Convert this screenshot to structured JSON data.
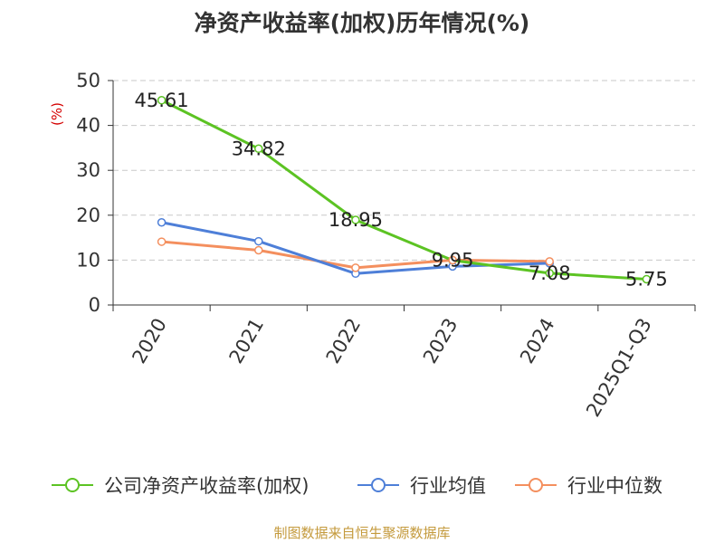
{
  "chart_data": {
    "type": "line",
    "title": "净资产收益率(加权)历年情况(%)",
    "ylabel": "(%)",
    "xlabel": "",
    "ylim": [
      0,
      50
    ],
    "yticks": [
      0,
      10,
      20,
      30,
      40,
      50
    ],
    "categories": [
      "2020",
      "2021",
      "2022",
      "2023",
      "2024",
      "2025Q1-Q3"
    ],
    "grid": true,
    "legend_position": "bottom",
    "series": [
      {
        "name": "公司净资产收益率(加权)",
        "color": "#5cc323",
        "values": [
          45.61,
          34.82,
          18.95,
          9.95,
          7.08,
          5.75
        ],
        "labels": [
          "45.61",
          "34.82",
          "18.95",
          "9.95",
          "7.08",
          "5.75"
        ]
      },
      {
        "name": "行业均值",
        "color": "#4e7fd8",
        "values": [
          18.4,
          14.2,
          7.0,
          8.6,
          9.3,
          null
        ]
      },
      {
        "name": "行业中位数",
        "color": "#f48f5e",
        "values": [
          14.1,
          12.2,
          8.3,
          10.0,
          9.7,
          null
        ]
      }
    ]
  },
  "footer": "制图数据来自恒生聚源数据库"
}
